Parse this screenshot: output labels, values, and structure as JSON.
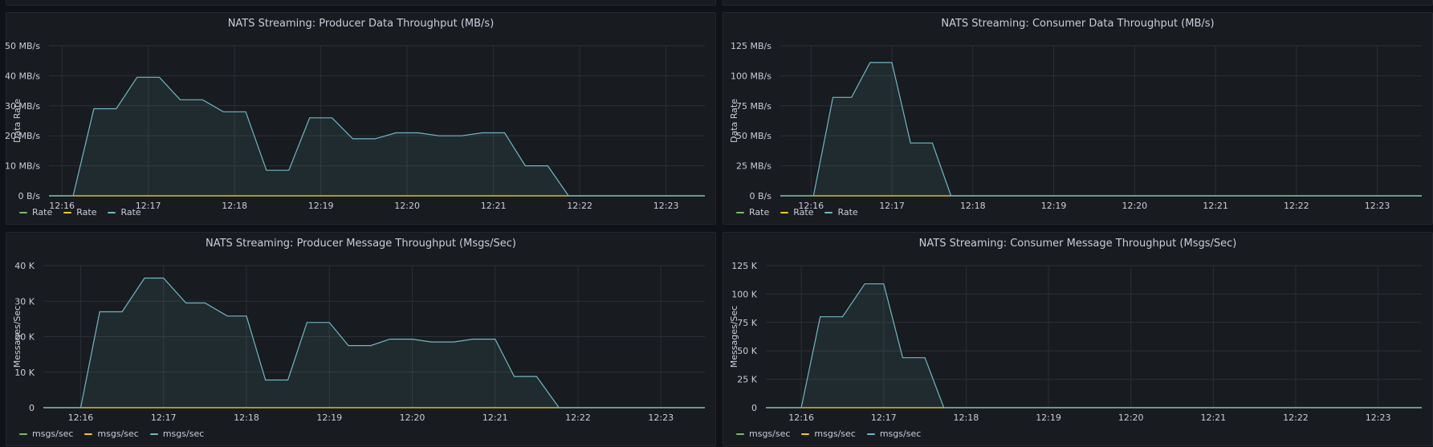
{
  "colors": {
    "series_green": "#73bf69",
    "series_yellow": "#f2cc0c",
    "series_teal": "#6fb8c4",
    "grid": "#2c2f36"
  },
  "chart_data": [
    {
      "type": "area",
      "title": "NATS Streaming: Producer Data Throughput (MB/s)",
      "ylabel": "Data Rate",
      "x_ticks": [
        "12:16",
        "12:17",
        "12:18",
        "12:19",
        "12:20",
        "12:21",
        "12:22",
        "12:23"
      ],
      "y_ticks": [
        "0 B/s",
        "10 MB/s",
        "20 MB/s",
        "30 MB/s",
        "40 MB/s",
        "50 MB/s"
      ],
      "ylim": [
        0,
        50
      ],
      "xlim": [
        15.85,
        23.45
      ],
      "grid": true,
      "legend": [
        "Rate",
        "Rate",
        "Rate"
      ],
      "series": [
        {
          "x": [
            15.85,
            23.45
          ],
          "y": [
            0,
            0
          ]
        },
        {
          "x": [
            15.85,
            23.45
          ],
          "y": [
            0,
            0
          ]
        },
        {
          "x": [
            15.85,
            16.13,
            16.37,
            16.63,
            16.87,
            17.13,
            17.37,
            17.63,
            17.87,
            18.13,
            18.37,
            18.63,
            18.87,
            19.13,
            19.37,
            19.63,
            19.87,
            20.13,
            20.37,
            20.63,
            20.87,
            21.13,
            21.37,
            21.63,
            21.87,
            23.45
          ],
          "y": [
            0,
            0,
            29,
            29,
            39.5,
            39.5,
            32,
            32,
            28,
            28,
            8.5,
            8.5,
            26,
            26,
            19,
            19,
            21,
            21,
            20,
            20,
            21,
            21,
            10,
            10,
            0,
            0
          ]
        }
      ]
    },
    {
      "type": "area",
      "title": "NATS Streaming: Consumer Data Throughput (MB/s)",
      "ylabel": "Data Rate",
      "x_ticks": [
        "12:16",
        "12:17",
        "12:18",
        "12:19",
        "12:20",
        "12:21",
        "12:22",
        "12:23"
      ],
      "y_ticks": [
        "0 B/s",
        "25 MB/s",
        "50 MB/s",
        "75 MB/s",
        "100 MB/s",
        "125 MB/s"
      ],
      "ylim": [
        0,
        125
      ],
      "xlim": [
        15.62,
        23.55
      ],
      "grid": true,
      "legend": [
        "Rate",
        "Rate",
        "Rate"
      ],
      "series": [
        {
          "x": [
            15.62,
            23.55
          ],
          "y": [
            0,
            0
          ]
        },
        {
          "x": [
            15.62,
            23.55
          ],
          "y": [
            0,
            0
          ]
        },
        {
          "x": [
            15.62,
            16.03,
            16.27,
            16.5,
            16.73,
            17.0,
            17.23,
            17.5,
            17.73,
            23.55
          ],
          "y": [
            0,
            0,
            82,
            82,
            111,
            111,
            44,
            44,
            0,
            0
          ]
        }
      ]
    },
    {
      "type": "area",
      "title": "NATS Streaming: Producer Message Throughput (Msgs/Sec)",
      "ylabel": "Messages/Sec",
      "x_ticks": [
        "12:16",
        "12:17",
        "12:18",
        "12:19",
        "12:20",
        "12:21",
        "12:22",
        "12:23"
      ],
      "y_ticks": [
        "0",
        "10 K",
        "20 K",
        "30 K",
        "40 K"
      ],
      "ylim": [
        0,
        40
      ],
      "xlim": [
        15.55,
        23.53
      ],
      "grid": true,
      "legend": [
        "msgs/sec",
        "msgs/sec",
        "msgs/sec"
      ],
      "series": [
        {
          "x": [
            15.55,
            23.53
          ],
          "y": [
            0,
            0
          ]
        },
        {
          "x": [
            15.55,
            23.53
          ],
          "y": [
            0,
            0
          ]
        },
        {
          "x": [
            15.55,
            16.0,
            16.23,
            16.5,
            16.77,
            17.0,
            17.27,
            17.5,
            17.77,
            18.0,
            18.23,
            18.5,
            18.73,
            19.0,
            19.23,
            19.5,
            19.73,
            20.0,
            20.23,
            20.5,
            20.73,
            21.0,
            21.23,
            21.5,
            21.77,
            23.53
          ],
          "y": [
            0,
            0,
            27,
            27,
            36.5,
            36.5,
            29.5,
            29.5,
            25.8,
            25.8,
            7.8,
            7.8,
            24,
            24,
            17.5,
            17.5,
            19.3,
            19.3,
            18.5,
            18.5,
            19.3,
            19.3,
            8.8,
            8.8,
            0,
            0
          ]
        }
      ]
    },
    {
      "type": "area",
      "title": "NATS Streaming: Consumer Message Throughput (Msgs/Sec)",
      "ylabel": "Messages/Sec",
      "x_ticks": [
        "12:16",
        "12:17",
        "12:18",
        "12:19",
        "12:20",
        "12:21",
        "12:22",
        "12:23"
      ],
      "y_ticks": [
        "0",
        "25 K",
        "50 K",
        "75 K",
        "100 K",
        "125 K"
      ],
      "ylim": [
        0,
        125
      ],
      "xlim": [
        15.57,
        23.53
      ],
      "grid": true,
      "legend": [
        "msgs/sec",
        "msgs/sec",
        "msgs/sec"
      ],
      "series": [
        {
          "x": [
            15.57,
            23.53
          ],
          "y": [
            0,
            0
          ]
        },
        {
          "x": [
            15.57,
            23.53
          ],
          "y": [
            0,
            0
          ]
        },
        {
          "x": [
            15.57,
            16.0,
            16.23,
            16.5,
            16.77,
            17.0,
            17.23,
            17.5,
            17.73,
            23.53
          ],
          "y": [
            0,
            0,
            80,
            80,
            109,
            109,
            44,
            44,
            0,
            0
          ]
        }
      ]
    }
  ]
}
